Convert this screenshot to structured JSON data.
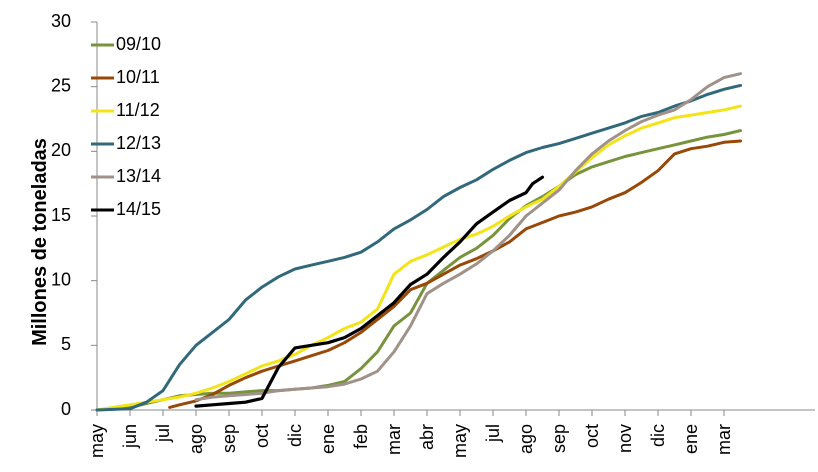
{
  "chart_data": {
    "type": "line",
    "xlabel": "",
    "ylabel": "Millones de toneladas",
    "ylim": [
      0,
      30
    ],
    "yticks": [
      0,
      5,
      10,
      15,
      20,
      25,
      30
    ],
    "categories": [
      "may",
      "jun",
      "jul",
      "ago",
      "sep",
      "oct",
      "dic",
      "ene",
      "feb",
      "mar",
      "abr",
      "may",
      "jul",
      "ago",
      "sep",
      "oct",
      "nov",
      "dic",
      "ene",
      "mar"
    ],
    "legend_position": "top-left",
    "grid": false,
    "series": [
      {
        "name": "09/10",
        "color": "#77933C",
        "points": [
          [
            0,
            0
          ],
          [
            0.5,
            0.1
          ],
          [
            1,
            0.2
          ],
          [
            1.5,
            0.5
          ],
          [
            2,
            0.8
          ],
          [
            2.5,
            1.1
          ],
          [
            3,
            1.2
          ],
          [
            3.5,
            1.3
          ],
          [
            4,
            1.3
          ],
          [
            4.5,
            1.4
          ],
          [
            5,
            1.5
          ],
          [
            5.5,
            1.5
          ],
          [
            6,
            1.6
          ],
          [
            6.5,
            1.7
          ],
          [
            7,
            1.9
          ],
          [
            7.5,
            2.2
          ],
          [
            8,
            3.2
          ],
          [
            8.5,
            4.5
          ],
          [
            9,
            6.5
          ],
          [
            9.5,
            7.5
          ],
          [
            10,
            9.8
          ],
          [
            10.5,
            10.8
          ],
          [
            11,
            11.8
          ],
          [
            11.5,
            12.5
          ],
          [
            12,
            13.5
          ],
          [
            12.5,
            14.8
          ],
          [
            13,
            15.8
          ],
          [
            13.5,
            16.5
          ],
          [
            14,
            17.3
          ],
          [
            14.5,
            18.2
          ],
          [
            15,
            18.8
          ],
          [
            15.5,
            19.2
          ],
          [
            16,
            19.6
          ],
          [
            16.5,
            19.9
          ],
          [
            17,
            20.2
          ],
          [
            17.5,
            20.5
          ],
          [
            18,
            20.8
          ],
          [
            18.5,
            21.1
          ],
          [
            19,
            21.3
          ],
          [
            19.5,
            21.6
          ]
        ]
      },
      {
        "name": "10/11",
        "color": "#984807",
        "points": [
          [
            2.2,
            0.2
          ],
          [
            2.5,
            0.4
          ],
          [
            3,
            0.7
          ],
          [
            3.5,
            1.2
          ],
          [
            4,
            1.9
          ],
          [
            4.5,
            2.5
          ],
          [
            5,
            3.0
          ],
          [
            5.5,
            3.4
          ],
          [
            6,
            3.8
          ],
          [
            6.5,
            4.2
          ],
          [
            7,
            4.6
          ],
          [
            7.5,
            5.2
          ],
          [
            8,
            6.0
          ],
          [
            8.5,
            7.0
          ],
          [
            9,
            8.0
          ],
          [
            9.5,
            9.3
          ],
          [
            10,
            9.8
          ],
          [
            10.5,
            10.5
          ],
          [
            11,
            11.2
          ],
          [
            11.5,
            11.7
          ],
          [
            12,
            12.3
          ],
          [
            12.5,
            13.0
          ],
          [
            13,
            14.0
          ],
          [
            13.5,
            14.5
          ],
          [
            14,
            15.0
          ],
          [
            14.5,
            15.3
          ],
          [
            15,
            15.7
          ],
          [
            15.5,
            16.3
          ],
          [
            16,
            16.8
          ],
          [
            16.5,
            17.6
          ],
          [
            17,
            18.5
          ],
          [
            17.5,
            19.8
          ],
          [
            18,
            20.2
          ],
          [
            18.5,
            20.4
          ],
          [
            19,
            20.7
          ],
          [
            19.5,
            20.8
          ]
        ]
      },
      {
        "name": "11/12",
        "color": "#F2E416",
        "points": [
          [
            0,
            0
          ],
          [
            0.5,
            0.2
          ],
          [
            1,
            0.4
          ],
          [
            1.5,
            0.6
          ],
          [
            2,
            0.8
          ],
          [
            2.5,
            1.0
          ],
          [
            3,
            1.3
          ],
          [
            3.5,
            1.7
          ],
          [
            4,
            2.2
          ],
          [
            4.5,
            2.8
          ],
          [
            5,
            3.4
          ],
          [
            5.5,
            3.8
          ],
          [
            6,
            4.3
          ],
          [
            6.5,
            5.0
          ],
          [
            7,
            5.6
          ],
          [
            7.5,
            6.3
          ],
          [
            8,
            6.8
          ],
          [
            8.5,
            7.8
          ],
          [
            9,
            10.5
          ],
          [
            9.5,
            11.5
          ],
          [
            10,
            12.0
          ],
          [
            10.5,
            12.6
          ],
          [
            11,
            13.2
          ],
          [
            11.5,
            13.6
          ],
          [
            12,
            14.2
          ],
          [
            12.5,
            15.0
          ],
          [
            13,
            15.7
          ],
          [
            13.5,
            16.3
          ],
          [
            14,
            17.3
          ],
          [
            14.5,
            18.4
          ],
          [
            15,
            19.5
          ],
          [
            15.5,
            20.5
          ],
          [
            16,
            21.2
          ],
          [
            16.5,
            21.8
          ],
          [
            17,
            22.2
          ],
          [
            17.5,
            22.6
          ],
          [
            18,
            22.8
          ],
          [
            18.5,
            23.0
          ],
          [
            19,
            23.2
          ],
          [
            19.5,
            23.5
          ]
        ]
      },
      {
        "name": "12/13",
        "color": "#31697A",
        "points": [
          [
            0,
            0
          ],
          [
            0.5,
            0.05
          ],
          [
            1,
            0.1
          ],
          [
            1.5,
            0.6
          ],
          [
            2,
            1.5
          ],
          [
            2.5,
            3.5
          ],
          [
            3,
            5.0
          ],
          [
            3.5,
            6.0
          ],
          [
            4,
            7.0
          ],
          [
            4.5,
            8.5
          ],
          [
            5,
            9.5
          ],
          [
            5.5,
            10.3
          ],
          [
            6,
            10.9
          ],
          [
            6.5,
            11.2
          ],
          [
            7,
            11.5
          ],
          [
            7.5,
            11.8
          ],
          [
            8,
            12.2
          ],
          [
            8.5,
            13.0
          ],
          [
            9,
            14.0
          ],
          [
            9.5,
            14.7
          ],
          [
            10,
            15.5
          ],
          [
            10.5,
            16.5
          ],
          [
            11,
            17.2
          ],
          [
            11.5,
            17.8
          ],
          [
            12,
            18.6
          ],
          [
            12.5,
            19.3
          ],
          [
            13,
            19.9
          ],
          [
            13.5,
            20.3
          ],
          [
            14,
            20.6
          ],
          [
            14.5,
            21.0
          ],
          [
            15,
            21.4
          ],
          [
            15.5,
            21.8
          ],
          [
            16,
            22.2
          ],
          [
            16.5,
            22.7
          ],
          [
            17,
            23.0
          ],
          [
            17.5,
            23.5
          ],
          [
            18,
            23.9
          ],
          [
            18.5,
            24.4
          ],
          [
            19,
            24.8
          ],
          [
            19.5,
            25.1
          ]
        ]
      },
      {
        "name": "13/14",
        "color": "#A09189",
        "points": [
          [
            3,
            0.8
          ],
          [
            3.5,
            1.0
          ],
          [
            4,
            1.1
          ],
          [
            4.5,
            1.2
          ],
          [
            5,
            1.3
          ],
          [
            5.5,
            1.5
          ],
          [
            6,
            1.6
          ],
          [
            6.5,
            1.7
          ],
          [
            7,
            1.8
          ],
          [
            7.5,
            2.0
          ],
          [
            8,
            2.4
          ],
          [
            8.5,
            3.0
          ],
          [
            9,
            4.5
          ],
          [
            9.5,
            6.5
          ],
          [
            10,
            9.0
          ],
          [
            10.5,
            9.8
          ],
          [
            11,
            10.5
          ],
          [
            11.5,
            11.3
          ],
          [
            12,
            12.3
          ],
          [
            12.5,
            13.5
          ],
          [
            13,
            15.0
          ],
          [
            13.5,
            16.0
          ],
          [
            14,
            17.0
          ],
          [
            14.5,
            18.5
          ],
          [
            15,
            19.8
          ],
          [
            15.5,
            20.8
          ],
          [
            16,
            21.6
          ],
          [
            16.5,
            22.3
          ],
          [
            17,
            22.8
          ],
          [
            17.5,
            23.2
          ],
          [
            18,
            24.0
          ],
          [
            18.5,
            25.0
          ],
          [
            19,
            25.7
          ],
          [
            19.5,
            26.0
          ]
        ]
      },
      {
        "name": "14/15",
        "color": "#000000",
        "points": [
          [
            3,
            0.3
          ],
          [
            3.5,
            0.4
          ],
          [
            4,
            0.5
          ],
          [
            4.5,
            0.6
          ],
          [
            5,
            0.9
          ],
          [
            5.5,
            3.3
          ],
          [
            6,
            4.8
          ],
          [
            6.5,
            5.0
          ],
          [
            7,
            5.2
          ],
          [
            7.5,
            5.6
          ],
          [
            8,
            6.3
          ],
          [
            8.5,
            7.3
          ],
          [
            9,
            8.3
          ],
          [
            9.5,
            9.7
          ],
          [
            10,
            10.5
          ],
          [
            10.5,
            11.8
          ],
          [
            11,
            13.0
          ],
          [
            11.5,
            14.4
          ],
          [
            12,
            15.3
          ],
          [
            12.5,
            16.2
          ],
          [
            13,
            16.8
          ],
          [
            13.2,
            17.5
          ],
          [
            13.5,
            18.0
          ]
        ]
      }
    ]
  }
}
